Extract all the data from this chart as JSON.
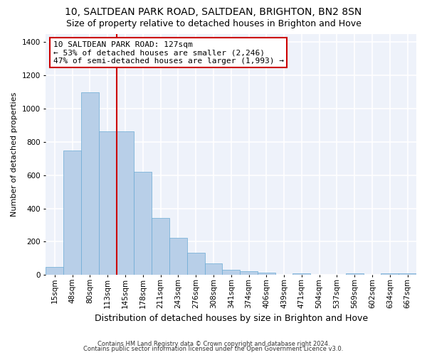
{
  "title": "10, SALTDEAN PARK ROAD, SALTDEAN, BRIGHTON, BN2 8SN",
  "subtitle": "Size of property relative to detached houses in Brighton and Hove",
  "xlabel": "Distribution of detached houses by size in Brighton and Hove",
  "ylabel": "Number of detached properties",
  "footnote1": "Contains HM Land Registry data © Crown copyright and database right 2024.",
  "footnote2": "Contains public sector information licensed under the Open Government Licence v3.0.",
  "categories": [
    "15sqm",
    "48sqm",
    "80sqm",
    "113sqm",
    "145sqm",
    "178sqm",
    "211sqm",
    "243sqm",
    "276sqm",
    "308sqm",
    "341sqm",
    "374sqm",
    "406sqm",
    "439sqm",
    "471sqm",
    "504sqm",
    "537sqm",
    "569sqm",
    "602sqm",
    "634sqm",
    "667sqm"
  ],
  "bar_heights": [
    50,
    750,
    1100,
    865,
    865,
    620,
    345,
    225,
    135,
    68,
    30,
    22,
    13,
    0,
    10,
    0,
    0,
    10,
    0,
    10,
    10
  ],
  "bar_color": "#b8cfe8",
  "bar_edge_color": "#6aaad4",
  "vline_color": "#cc0000",
  "vline_x_idx": 3.5,
  "annotation_text": "10 SALTDEAN PARK ROAD: 127sqm\n← 53% of detached houses are smaller (2,246)\n47% of semi-detached houses are larger (1,993) →",
  "ylim": [
    0,
    1450
  ],
  "yticks": [
    0,
    200,
    400,
    600,
    800,
    1000,
    1200,
    1400
  ],
  "bg_color": "#eef2fa",
  "grid_color": "#ffffff",
  "title_fontsize": 10,
  "subtitle_fontsize": 9,
  "ylabel_fontsize": 8,
  "xlabel_fontsize": 9,
  "tick_fontsize": 7.5,
  "footnote_fontsize": 6,
  "annotation_fontsize": 8
}
